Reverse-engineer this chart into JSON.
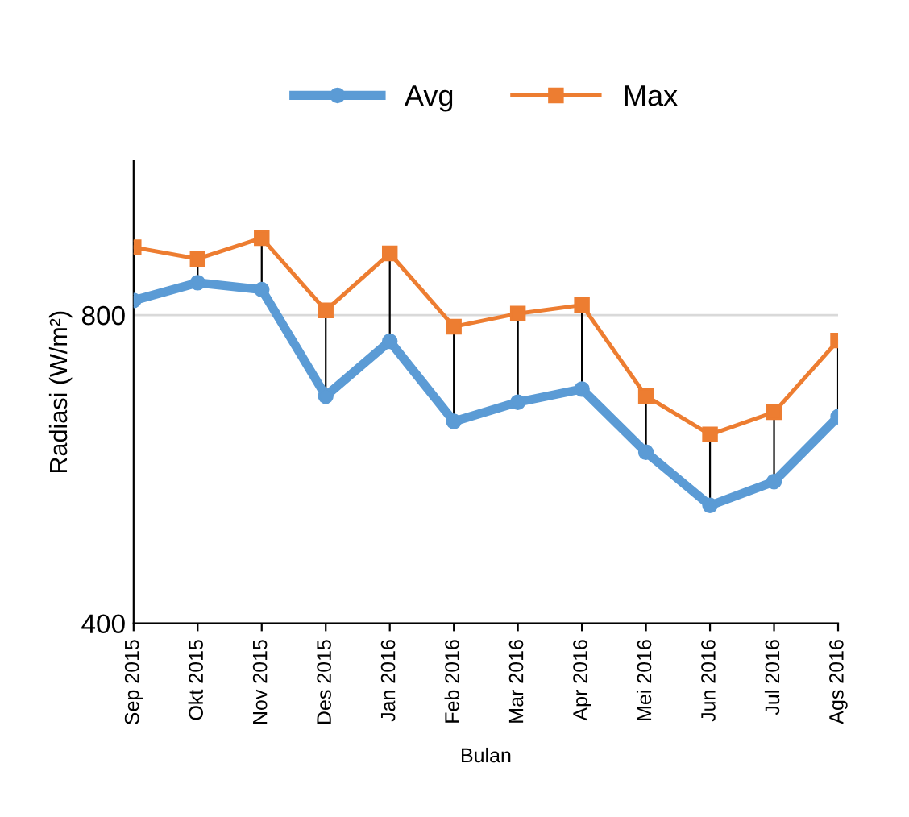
{
  "chart_data": {
    "type": "line",
    "xlabel": "Bulan",
    "ylabel": "Radiasi (W/m²)",
    "categories": [
      "Sep 2015",
      "Okt 2015",
      "Nov 2015",
      "Des 2015",
      "Jan 2016",
      "Feb 2016",
      "Mar 2016",
      "Apr 2016",
      "Mei 2016",
      "Jun 2016",
      "Jul 2016",
      "Ags 2016"
    ],
    "series": [
      {
        "name": "Avg",
        "color": "#5b9bd5",
        "marker": "circle",
        "values": [
          819,
          842,
          833,
          695,
          766,
          662,
          687,
          704,
          622,
          553,
          584,
          668
        ]
      },
      {
        "name": "Max",
        "color": "#ed7d31",
        "marker": "square",
        "values": [
          888,
          873,
          900,
          806,
          880,
          785,
          802,
          813,
          695,
          645,
          674,
          767
        ]
      }
    ],
    "ylim": [
      400,
      1000
    ],
    "yticks": [
      400,
      800
    ],
    "grid": "y",
    "legend": "top",
    "line_style": "solid"
  }
}
